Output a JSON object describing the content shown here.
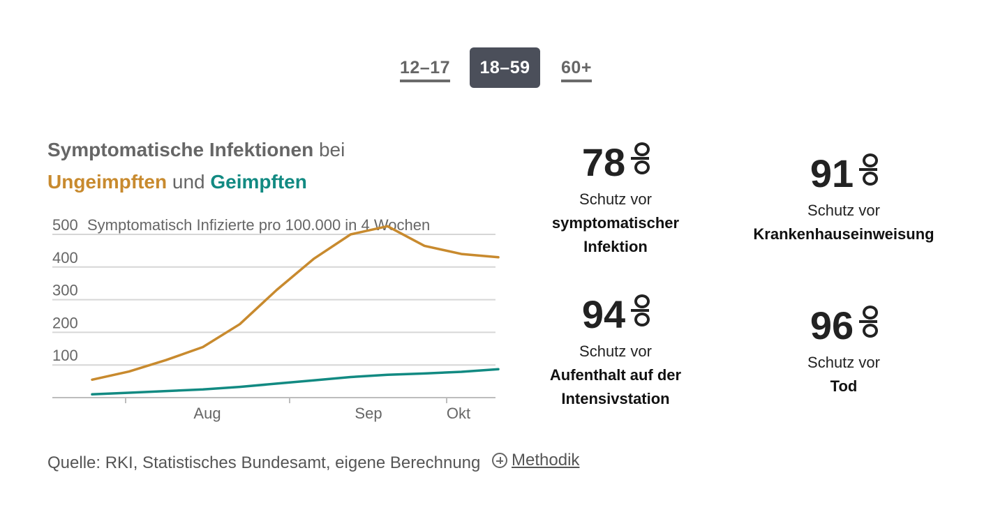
{
  "tabs": [
    {
      "label": "12–17",
      "active": false
    },
    {
      "label": "18–59",
      "active": true
    },
    {
      "label": "60+",
      "active": false
    }
  ],
  "heading": {
    "part1": "Symptomatische Infektionen",
    "part2": " bei",
    "part3": "Ungeimpften",
    "part4": " und ",
    "part5": "Geimpften"
  },
  "colors": {
    "unvaccinated": "#c88a2e",
    "vaccinated": "#128a82",
    "grid": "#d6d6d6",
    "tab_active_bg": "#4b4f5a"
  },
  "chart_data": {
    "type": "line",
    "title": "Symptomatische Infektionen bei Ungeimpften und Geimpften",
    "ylabel": "Symptomatisch Infizierte pro 100.000 in 4 Wochen",
    "ylim": [
      0,
      500
    ],
    "yticks": [
      100,
      200,
      300,
      400,
      500
    ],
    "x_tick_labels": [
      "Aug",
      "Sep",
      "Okt"
    ],
    "x": [
      1,
      2,
      3,
      4,
      5,
      6,
      7,
      8,
      9,
      10,
      11,
      12
    ],
    "series": [
      {
        "name": "Ungeimpften",
        "color": "#c88a2e",
        "values": [
          55,
          80,
          115,
          155,
          225,
          330,
          425,
          500,
          525,
          465,
          440,
          430
        ]
      },
      {
        "name": "Geimpften",
        "color": "#128a82",
        "values": [
          10,
          15,
          20,
          25,
          33,
          43,
          53,
          63,
          70,
          74,
          79,
          87
        ]
      }
    ],
    "grid": true,
    "legend": "none"
  },
  "stats": [
    {
      "value": "78",
      "label": "Schutz vor",
      "strong": "symptomatischer Infektion"
    },
    {
      "value": "91",
      "label": "Schutz vor",
      "strong": "Krankenhauseinweisung"
    },
    {
      "value": "94",
      "label": "Schutz vor",
      "strong": "Aufenthalt auf der Intensivstation"
    },
    {
      "value": "96",
      "label": "Schutz vor",
      "strong": "Tod"
    }
  ],
  "footer": {
    "source": "Quelle: RKI, Statistisches Bundesamt, eigene Berechnung",
    "methodik_label": "Methodik",
    "methodik_icon": "plus-circle-icon"
  }
}
